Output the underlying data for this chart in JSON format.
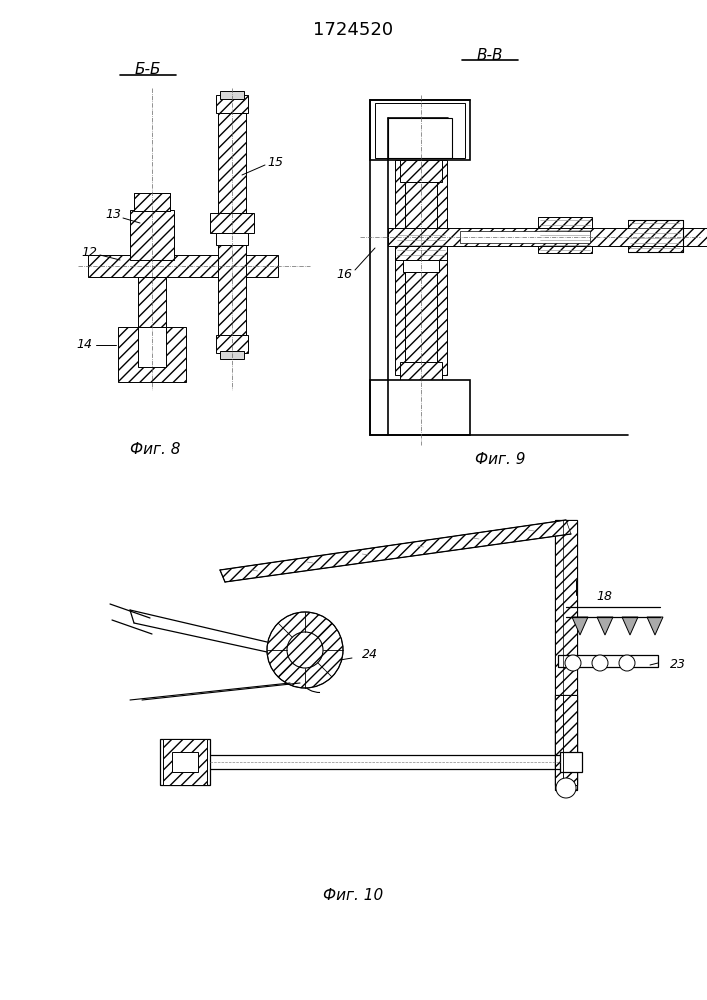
{
  "title": "1724520",
  "bg_color": "#ffffff",
  "fig_width": 7.07,
  "fig_height": 10.0,
  "label_BB": "Б-Б",
  "label_VV": "В-В",
  "label_fig8": "Фиг. 8",
  "label_fig9": "Фиг. 9",
  "label_fig10": "Фиг. 10"
}
